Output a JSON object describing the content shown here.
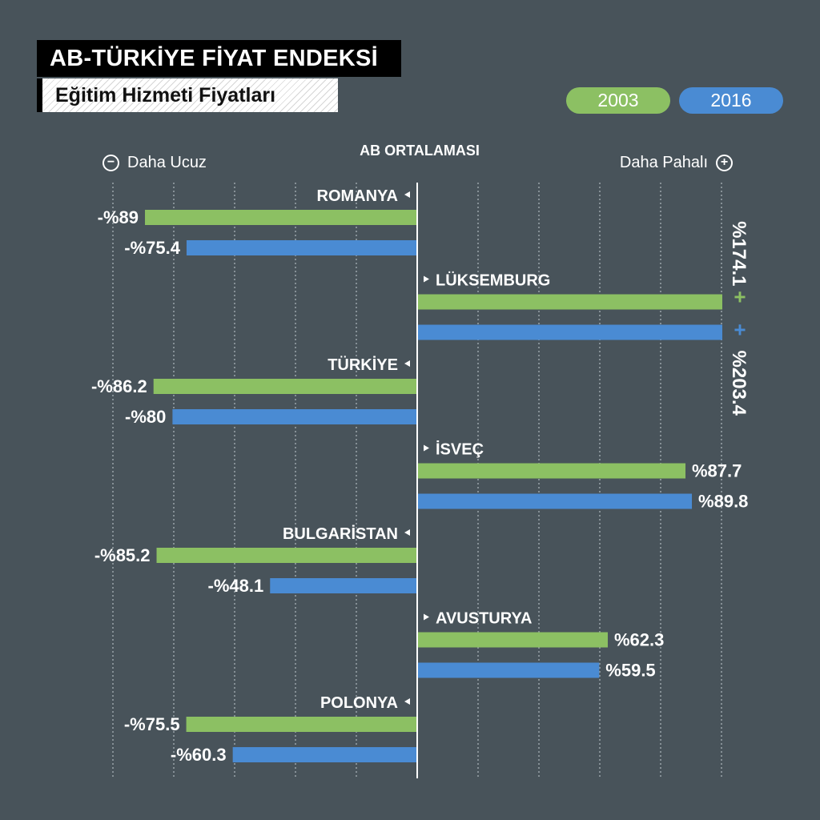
{
  "header": {
    "title": "AB-TÜRKİYE FİYAT ENDEKSİ",
    "subtitle": "Eğitim Hizmeti Fiyatları"
  },
  "legend": {
    "y2003": "2003",
    "y2016": "2016"
  },
  "direction": {
    "minus_symbol": "−",
    "plus_symbol": "+",
    "cheaper": "Daha Ucuz",
    "expensive": "Daha Pahalı",
    "center": "AB ORTALAMASI"
  },
  "colors": {
    "green": "#8cc063",
    "blue": "#4a8bd3",
    "background": "#48535a"
  },
  "chart_data": {
    "type": "bar",
    "orientation": "horizontal",
    "categories": [
      "ROMANYA",
      "LÜKSEMBURG",
      "TÜRKİYE",
      "İSVEÇ",
      "BULGARİSTAN",
      "AVUSTURYA",
      "POLONYA"
    ],
    "series": [
      {
        "name": "2003",
        "values": [
          -89,
          174.1,
          -86.2,
          87.7,
          -85.2,
          62.3,
          -75.5
        ],
        "labels": [
          "-%89",
          "%174.1",
          "-%86.2",
          "%87.7",
          "-%85.2",
          "%62.3",
          "-%75.5"
        ]
      },
      {
        "name": "2016",
        "values": [
          -75.4,
          203.4,
          -80,
          89.8,
          -48.1,
          59.5,
          -60.3
        ],
        "labels": [
          "-%75.4",
          "%203.4",
          "-%80",
          "%89.8",
          "-%48.1",
          "%59.5",
          "-%60.3"
        ]
      }
    ],
    "truncated_markers": [
      "+",
      "+"
    ],
    "xlabel": "AB ORTALAMASI",
    "grid": true
  }
}
